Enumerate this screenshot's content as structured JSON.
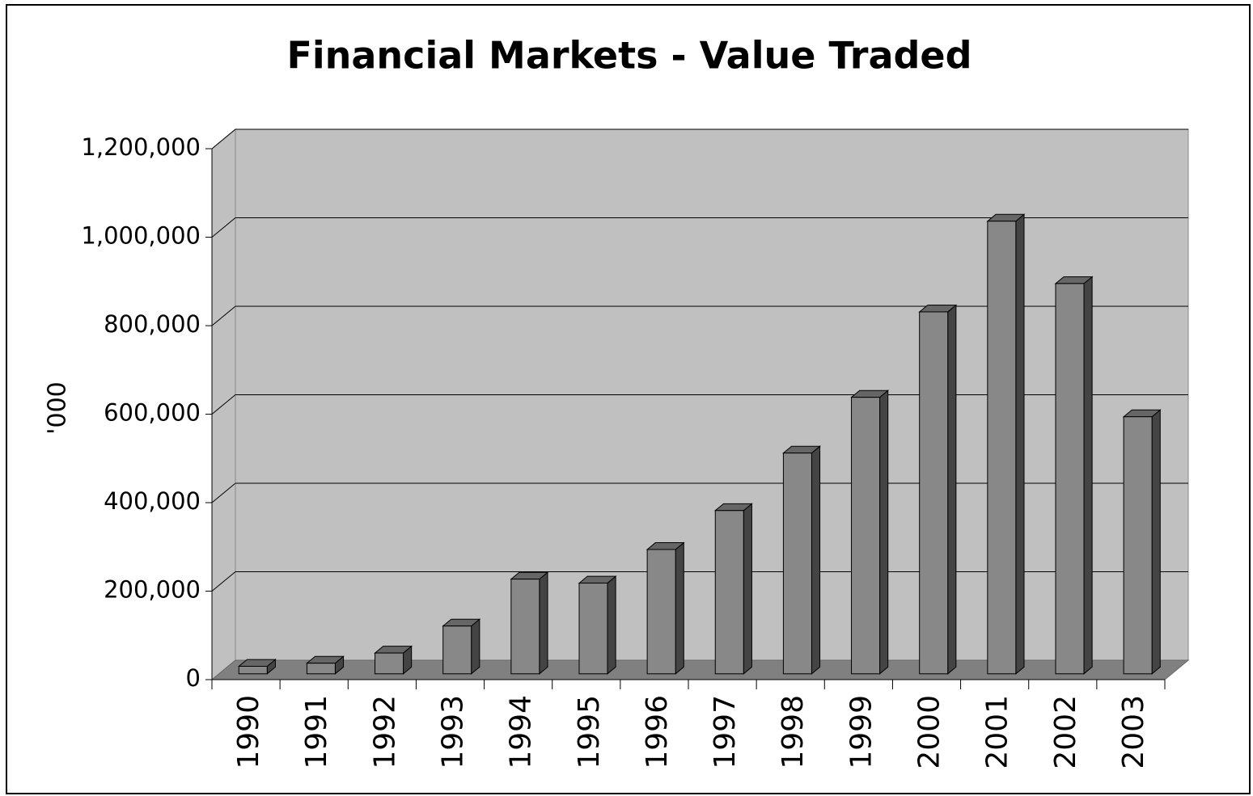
{
  "chart_data": {
    "type": "bar3d",
    "title": "Financial Markets - Value Traded",
    "y_label": "'000",
    "categories": [
      "1990",
      "1991",
      "1992",
      "1993",
      "1994",
      "1995",
      "1996",
      "1997",
      "1998",
      "1999",
      "2000",
      "2001",
      "2002",
      "2003"
    ],
    "values": [
      17000,
      24000,
      47000,
      108000,
      214000,
      205000,
      281000,
      369000,
      499000,
      625000,
      818000,
      1023000,
      882000,
      581000
    ],
    "color": "#888888",
    "ylim": [
      0,
      1200000
    ],
    "yticks": [
      0,
      {
        "value": 200000,
        "label": "200,000"
      },
      {
        "value": 400000,
        "label": "400,000"
      },
      {
        "value": 600000,
        "label": "600,000"
      },
      {
        "value": 800000,
        "label": "800,000"
      },
      {
        "value": 1000000,
        "label": "1,000,000"
      },
      {
        "value": 1200000,
        "label": "1,200,000"
      }
    ],
    "grid": true
  }
}
